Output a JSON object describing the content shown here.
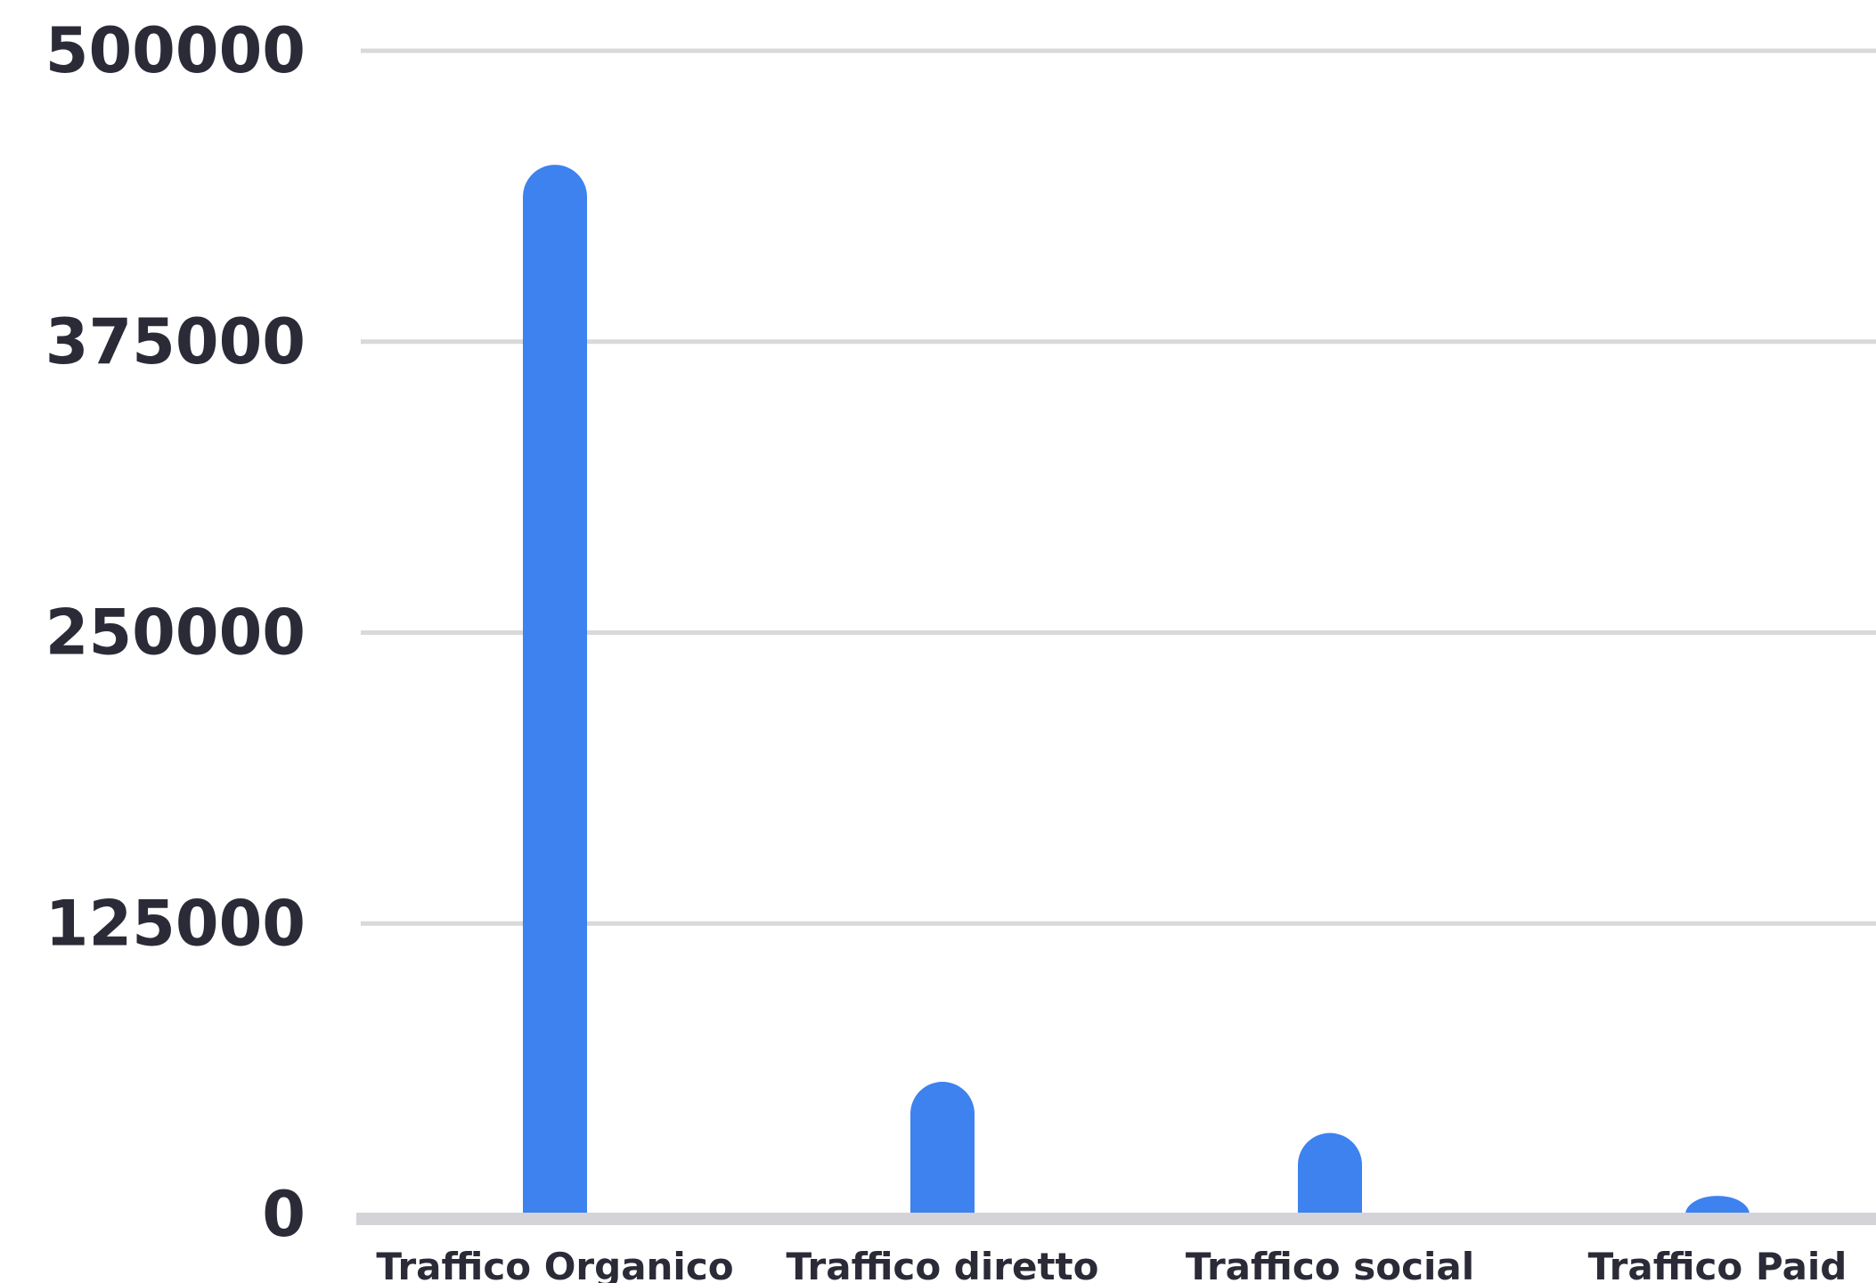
{
  "chart_data": {
    "type": "bar",
    "categories": [
      "Traffico Organico",
      "Traffico diretto",
      "Traffico social",
      "Traffico Paid"
    ],
    "values": [
      451000,
      57000,
      35000,
      8000
    ],
    "ylim": [
      0,
      500000
    ],
    "yticks": [
      "0",
      "125000",
      "250000",
      "375000",
      "500000"
    ],
    "grid": true,
    "bar_color": "#3d82ef",
    "grid_color": "#d9d9d9",
    "axis_color": "#d3d3d8",
    "text_color": "#2b2b38"
  }
}
